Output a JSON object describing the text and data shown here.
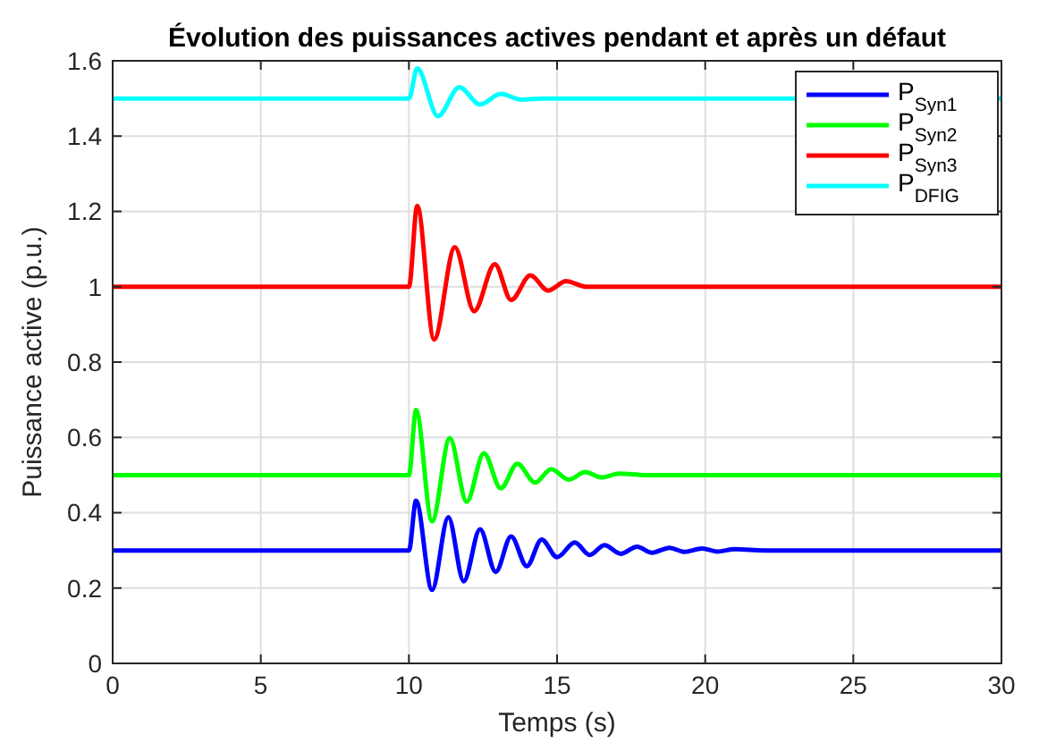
{
  "chart_data": {
    "type": "line",
    "title": "Évolution des puissances actives pendant et après un défaut",
    "xlabel": "Temps (s)",
    "ylabel": "Puissance active (p.u.)",
    "xlim": [
      0,
      30
    ],
    "ylim": [
      0,
      1.6
    ],
    "xticks": [
      0,
      5,
      10,
      15,
      20,
      25,
      30
    ],
    "yticks": [
      0,
      0.2,
      0.4,
      0.6,
      0.8,
      1,
      1.2,
      1.4,
      1.6
    ],
    "grid": true,
    "legend": "top right",
    "marker": "none",
    "line_style": "solid",
    "series": [
      {
        "name": "P$_{Syn1}$",
        "color": "#0000ff",
        "x": [
          0,
          10,
          10.24,
          10.78,
          11.33,
          11.85,
          12.4,
          12.93,
          13.45,
          13.98,
          14.48,
          15.0,
          15.6,
          16.1,
          16.6,
          17.15,
          17.7,
          18.2,
          18.8,
          19.3,
          19.9,
          20.4,
          21,
          22,
          30
        ],
        "values": [
          0.3,
          0.3,
          0.432,
          0.195,
          0.388,
          0.218,
          0.356,
          0.243,
          0.337,
          0.258,
          0.329,
          0.282,
          0.321,
          0.288,
          0.314,
          0.291,
          0.31,
          0.294,
          0.307,
          0.296,
          0.305,
          0.297,
          0.303,
          0.3,
          0.3
        ]
      },
      {
        "name": "P$_{Syn2}$",
        "color": "#00ff00",
        "x": [
          0,
          10,
          10.24,
          10.78,
          11.38,
          11.95,
          12.53,
          13.1,
          13.66,
          14.26,
          14.8,
          15.4,
          15.95,
          16.5,
          17.1,
          18,
          30
        ],
        "values": [
          0.5,
          0.5,
          0.673,
          0.377,
          0.598,
          0.429,
          0.558,
          0.465,
          0.53,
          0.48,
          0.516,
          0.488,
          0.508,
          0.494,
          0.504,
          0.5,
          0.5
        ]
      },
      {
        "name": "P$_{Syn3}$",
        "color": "#ff0000",
        "x": [
          0,
          10,
          10.28,
          10.85,
          11.55,
          12.2,
          12.9,
          13.45,
          14.1,
          14.7,
          15.3,
          16,
          30
        ],
        "values": [
          1,
          1,
          1.215,
          0.86,
          1.105,
          0.935,
          1.06,
          0.965,
          1.03,
          0.99,
          1.015,
          1,
          1
        ]
      },
      {
        "name": "P$_{DFIG}$",
        "color": "#00ffff",
        "x": [
          0,
          10,
          10.28,
          10.98,
          11.7,
          12.4,
          13.1,
          13.8,
          14.5,
          30
        ],
        "values": [
          1.5,
          1.5,
          1.58,
          1.453,
          1.53,
          1.484,
          1.512,
          1.497,
          1.5,
          1.5
        ]
      }
    ]
  }
}
